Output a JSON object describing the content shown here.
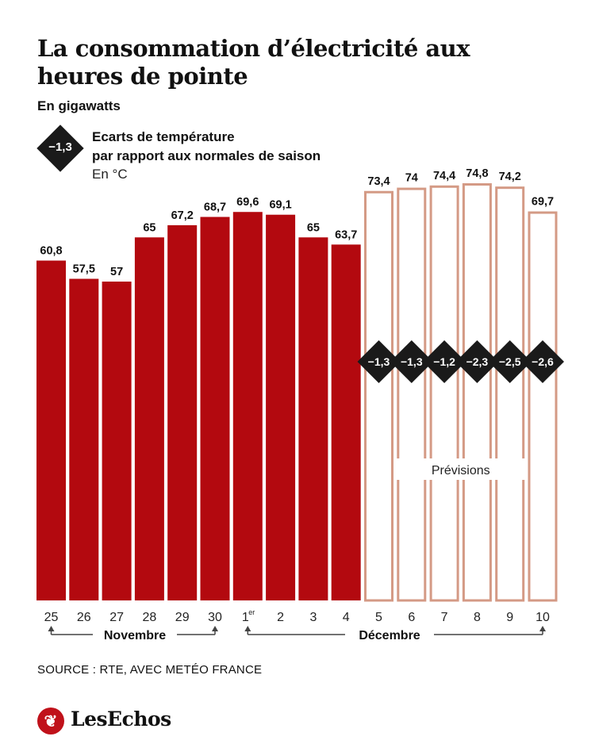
{
  "header": {
    "title": "La consommation d’électricité aux heures de pointe",
    "subtitle": "En gigawatts"
  },
  "legend": {
    "sample_value": "−1,3",
    "line1": "Ecarts de température",
    "line2": "par rapport aux normales de saison",
    "line3": "En °C"
  },
  "chart_data": {
    "type": "bar",
    "categories": [
      "25",
      "26",
      "27",
      "28",
      "29",
      "30",
      "1er",
      "2",
      "3",
      "4",
      "5",
      "6",
      "7",
      "8",
      "9",
      "10"
    ],
    "values": [
      60.8,
      57.5,
      57,
      65,
      67.2,
      68.7,
      69.6,
      69.1,
      65,
      63.7,
      73.4,
      74,
      74.4,
      74.8,
      74.2,
      69.7
    ],
    "value_labels": [
      "60,8",
      "57,5",
      "57",
      "65",
      "67,2",
      "68,7",
      "69,6",
      "69,1",
      "65",
      "63,7",
      "73,4",
      "74",
      "74,4",
      "74,8",
      "74,2",
      "69,7"
    ],
    "forecast": [
      false,
      false,
      false,
      false,
      false,
      false,
      false,
      false,
      false,
      false,
      true,
      true,
      true,
      true,
      true,
      true
    ],
    "temperature_deviation": [
      null,
      null,
      null,
      null,
      null,
      null,
      null,
      null,
      null,
      null,
      "−1,3",
      "−1,3",
      "−1,2",
      "−2,3",
      "−2,5",
      "−2,6"
    ],
    "forecast_label": "Prévisions",
    "month_labels": [
      "Novembre",
      "Décembre"
    ],
    "ylim": [
      0,
      76
    ],
    "grid": false,
    "colors": {
      "actual": "#b3090f",
      "forecast_stroke": "#d49a85",
      "diamond": "#1a1a1a",
      "arrow": "#444444"
    }
  },
  "footer": {
    "source": "SOURCE : RTE, AVEC METÉO FRANCE",
    "logo_text": "LesEchos",
    "logo_icon": "les-echos-rooster-icon"
  }
}
